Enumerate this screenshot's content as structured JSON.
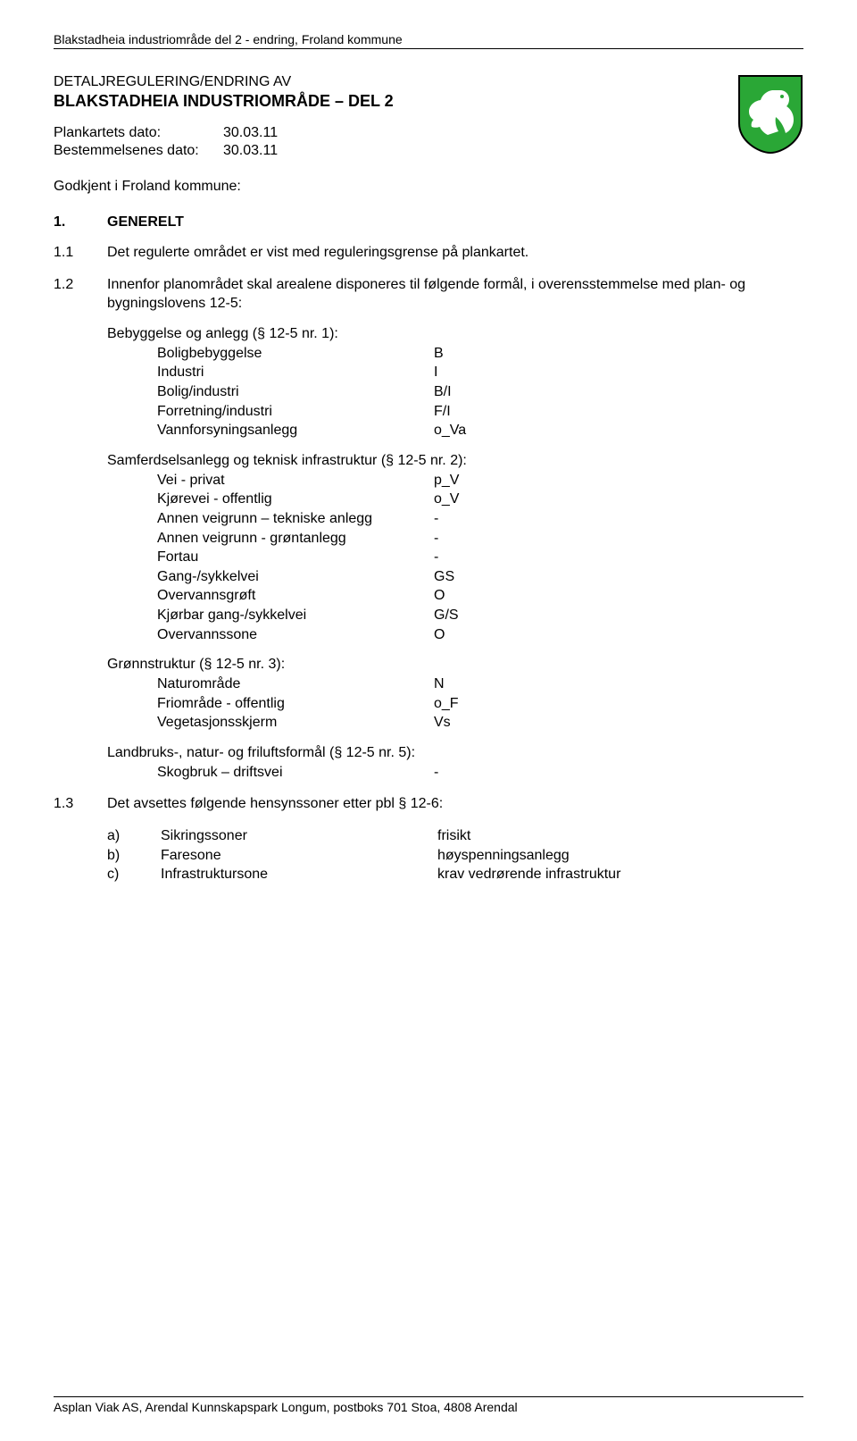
{
  "header": "Blakstadheia industriområde del 2 - endring, Froland kommune",
  "preTitle": "DETALJREGULERING/ENDRING AV",
  "mainTitle": "BLAKSTADHEIA INDUSTRIOMRÅDE – DEL 2",
  "dates": {
    "plankartLabel": "Plankartets dato:",
    "plankartValue": "30.03.11",
    "bestemmLabel": "Bestemmelsenes dato:",
    "bestemmValue": "30.03.11"
  },
  "godkjent": "Godkjent i Froland kommune:",
  "section1": {
    "num": "1.",
    "title": "GENERELT"
  },
  "c11": {
    "num": "1.1",
    "text": "Det regulerte området er vist med reguleringsgrense på plankartet."
  },
  "c12": {
    "num": "1.2",
    "text": "Innenfor planområdet skal arealene disponeres til følgende formål, i overensstemmelse med plan- og bygningslovens 12-5:"
  },
  "groupA": {
    "title": "Bebyggelse og anlegg (§ 12-5 nr. 1):",
    "items": [
      {
        "k": "Boligbebyggelse",
        "v": "B"
      },
      {
        "k": "Industri",
        "v": "I"
      },
      {
        "k": "Bolig/industri",
        "v": "B/I"
      },
      {
        "k": "Forretning/industri",
        "v": "F/I"
      },
      {
        "k": "Vannforsyningsanlegg",
        "v": "o_Va"
      }
    ]
  },
  "groupB": {
    "title": "Samferdselsanlegg og teknisk infrastruktur (§ 12-5 nr. 2):",
    "items": [
      {
        "k": "Vei - privat",
        "v": "p_V"
      },
      {
        "k": "Kjørevei - offentlig",
        "v": "o_V"
      },
      {
        "k": "Annen veigrunn – tekniske anlegg",
        "v": "-"
      },
      {
        "k": "Annen veigrunn - grøntanlegg",
        "v": "-"
      },
      {
        "k": "Fortau",
        "v": "-"
      },
      {
        "k": "Gang-/sykkelvei",
        "v": "GS"
      },
      {
        "k": "Overvannsgrøft",
        "v": "O"
      },
      {
        "k": "Kjørbar gang-/sykkelvei",
        "v": "G/S"
      },
      {
        "k": "Overvannssone",
        "v": "O"
      }
    ]
  },
  "groupC": {
    "title": "Grønnstruktur (§ 12-5 nr. 3):",
    "items": [
      {
        "k": "Naturområde",
        "v": "N"
      },
      {
        "k": "Friområde - offentlig",
        "v": "o_F"
      },
      {
        "k": "Vegetasjonsskjerm",
        "v": "Vs"
      }
    ]
  },
  "groupD": {
    "title": "Landbruks-, natur- og friluftsformål (§ 12-5 nr. 5):",
    "items": [
      {
        "k": "Skogbruk – driftsvei",
        "v": "-"
      }
    ]
  },
  "c13": {
    "num": "1.3",
    "text": "Det avsettes følgende hensynssoner etter pbl § 12-6:"
  },
  "abcList": [
    {
      "l": "a)",
      "k": "Sikringssoner",
      "v": "frisikt"
    },
    {
      "l": "b)",
      "k": "Faresone",
      "v": "høyspenningsanlegg"
    },
    {
      "l": "c)",
      "k": "Infrastruktursone",
      "v": "krav vedrørende infrastruktur"
    }
  ],
  "footer": "Asplan Viak AS, Arendal Kunnskapspark Longum, postboks 701 Stoa, 4808 Arendal",
  "shield": {
    "bg": "#2aa736",
    "stroke": "#000000",
    "squirrel": "#ffffff"
  }
}
